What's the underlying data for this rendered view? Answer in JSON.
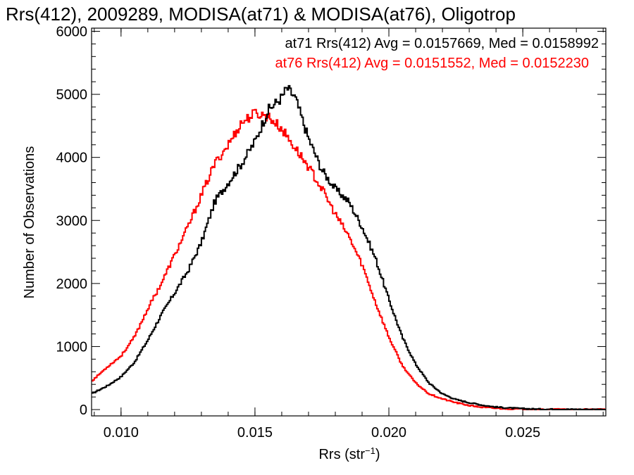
{
  "chart_data": {
    "type": "line",
    "title": "Rrs(412), 2009289, MODISA(at71) & MODISA(at76), Oligotrop",
    "xlabel": "Rrs (str",
    "xlabel_sup": "−1",
    "xlabel_close": ")",
    "ylabel": "Number of Observations",
    "xlim": [
      0.0089,
      0.0281
    ],
    "ylim": [
      -100,
      6050
    ],
    "x_ticks": [
      "0.010",
      "0.015",
      "0.020",
      "0.025"
    ],
    "x_tick_values": [
      0.01,
      0.015,
      0.02,
      0.025
    ],
    "y_ticks": [
      "0",
      "1000",
      "2000",
      "3000",
      "4000",
      "5000",
      "6000"
    ],
    "y_tick_values": [
      0,
      1000,
      2000,
      3000,
      4000,
      5000,
      6000
    ],
    "grid": false,
    "legend_position": "top-right",
    "series": [
      {
        "name": "at71 Rrs(412) Avg = 0.0157669, Med = 0.0158992",
        "color": "#000000",
        "x": [
          0.0089,
          0.0095,
          0.01,
          0.0105,
          0.011,
          0.0115,
          0.012,
          0.0125,
          0.013,
          0.0135,
          0.014,
          0.0145,
          0.015,
          0.0155,
          0.016,
          0.0162,
          0.0165,
          0.017,
          0.0175,
          0.018,
          0.0185,
          0.019,
          0.0195,
          0.02,
          0.0205,
          0.021,
          0.0215,
          0.022,
          0.0225,
          0.023,
          0.0235,
          0.024,
          0.0245,
          0.025,
          0.0255,
          0.026,
          0.027,
          0.0281
        ],
        "y": [
          250,
          380,
          520,
          750,
          1100,
          1500,
          1850,
          2200,
          2650,
          3300,
          3600,
          3900,
          4250,
          4750,
          4950,
          5100,
          4950,
          4300,
          3800,
          3500,
          3300,
          2900,
          2400,
          1750,
          1150,
          720,
          420,
          250,
          160,
          110,
          70,
          40,
          25,
          15,
          8,
          5,
          3,
          2
        ]
      },
      {
        "name": "at76 Rrs(412) Avg = 0.0151552, Med = 0.0152230",
        "color": "#ff0000",
        "x": [
          0.0089,
          0.0095,
          0.01,
          0.0105,
          0.011,
          0.0115,
          0.012,
          0.0125,
          0.013,
          0.0135,
          0.014,
          0.0145,
          0.015,
          0.0155,
          0.016,
          0.0165,
          0.017,
          0.0175,
          0.018,
          0.0185,
          0.019,
          0.0195,
          0.02,
          0.0205,
          0.021,
          0.0215,
          0.022,
          0.0225,
          0.023,
          0.0235,
          0.024,
          0.0245,
          0.025,
          0.0255,
          0.026,
          0.027,
          0.0281
        ],
        "y": [
          450,
          680,
          850,
          1150,
          1600,
          2000,
          2450,
          2900,
          3400,
          3900,
          4200,
          4550,
          4700,
          4650,
          4450,
          4150,
          3850,
          3500,
          3100,
          2750,
          2300,
          1700,
          1150,
          700,
          420,
          250,
          170,
          110,
          65,
          35,
          20,
          12,
          7,
          4,
          3,
          2,
          1
        ]
      }
    ]
  }
}
